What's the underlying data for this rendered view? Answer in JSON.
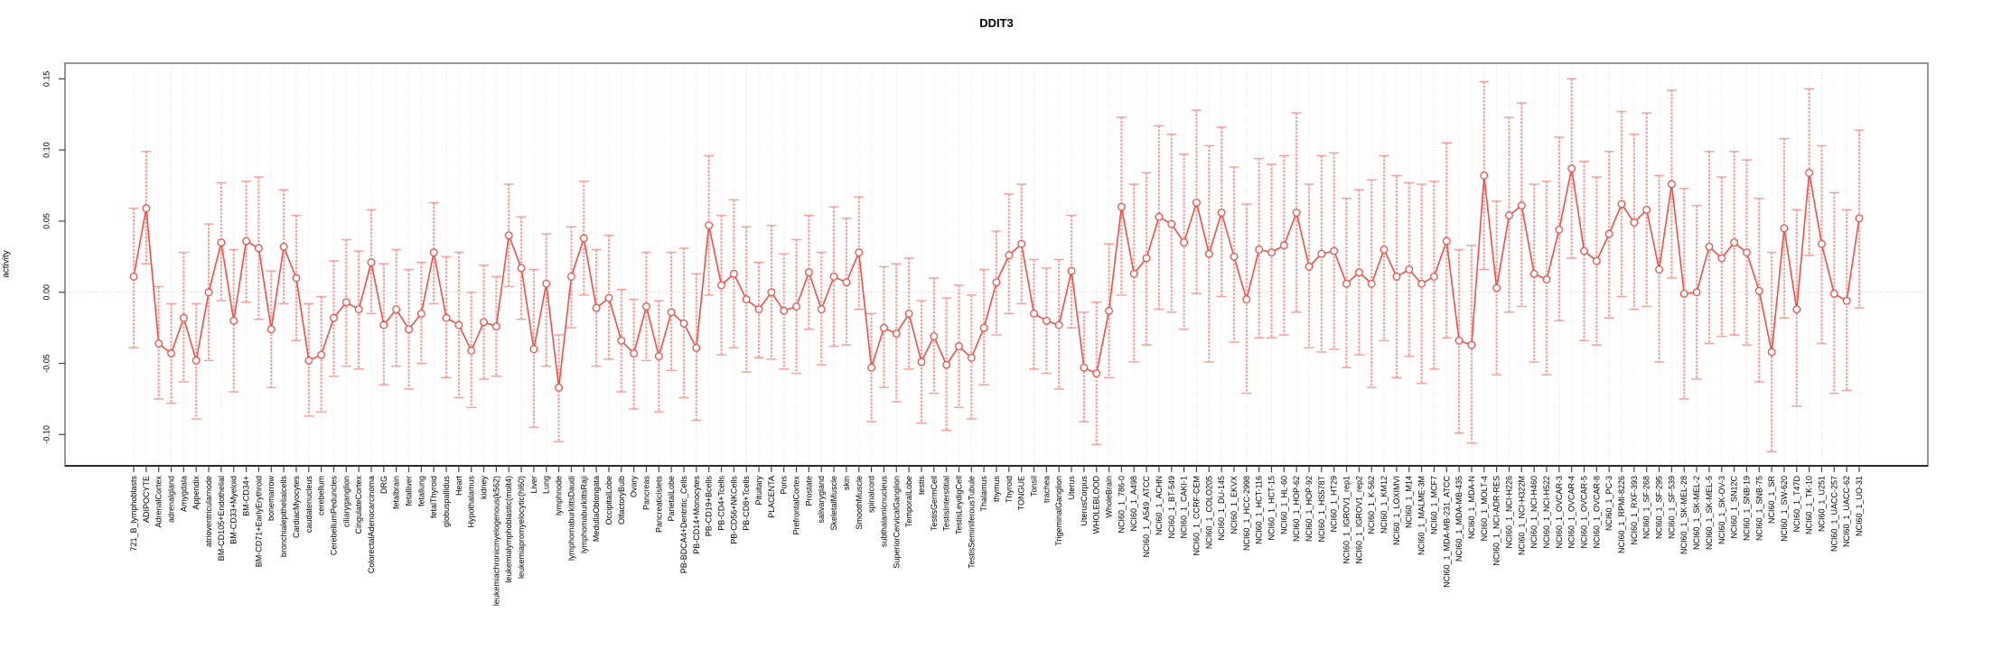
{
  "window": {
    "title": "DDIT3"
  },
  "chart_data": {
    "type": "line",
    "subtype": "points-with-error-bars",
    "title": "DDIT3",
    "xlabel": "",
    "ylabel": "activity",
    "ylim": [
      -0.122,
      0.161
    ],
    "yticks": [
      0.15,
      0.1,
      0.05,
      0.0,
      -0.05,
      -0.1
    ],
    "ytick_labels": [
      "0.15",
      "0.10",
      "0.05",
      "0.00",
      "-0.05",
      "-0.10"
    ],
    "grid": true,
    "zero_line": true,
    "legend": "none",
    "colors": {
      "line": "#ef4f48",
      "point": "#ef4f48",
      "error_bar": "#f5a09b",
      "grid": "#dedede",
      "zero_line": "#c8c8c8",
      "box": "#969696",
      "axis": "#2b2b2b",
      "text": "#000000"
    },
    "categories": [
      "721_B_lymphoblasts",
      "ADIPOCYTE",
      "AdrenalCortex",
      "adrenalgland",
      "Amygdala",
      "Appendix",
      "atrioventricularnode",
      "BM-CD105+Endothelial",
      "BM-CD33+Myeloid",
      "BM-CD34+",
      "BM-CD71+EarlyErythroid",
      "bonemarrow",
      "bronchialepithelialcells",
      "CardiacMyocytes",
      "caudatenucleus",
      "cerebellum",
      "CerebellumPeduncles",
      "ciliaryganglion",
      "CingulateCortex",
      "ColorectalAdenocarcinoma",
      "DRG",
      "fetalbrain",
      "fetalliver",
      "fetallung",
      "fetalThyroid",
      "globuspallidus",
      "Heart",
      "Hypothalamus",
      "kidney",
      "leukemiachronicmyelogenous(k562)",
      "leukemialymphoblastic(molt4)",
      "leukemiapromyelocytic(hl60)",
      "Liver",
      "Lung",
      "lymphnode",
      "lymphomaburkittsDaudi",
      "lymphomaburkittsRaji",
      "MedullaOblongata",
      "OccipitalLobe",
      "OlfactoryBulb",
      "Ovary",
      "Pancreas",
      "Pancreaticislets",
      "ParietalLobe",
      "PB-BDCA4+Dentritic_Cells",
      "PB-CD14+Monocytes",
      "PB-CD19+Bcells",
      "PB-CD4+Tcells",
      "PB-CD56+NKCells",
      "PB-CD8+Tcells",
      "Pituitary",
      "PLACENTA",
      "Pons",
      "PrefrontalCortex",
      "Prostate",
      "salivarygland",
      "SkeletalMuscle",
      "skin",
      "SmoothMuscle",
      "spinalcord",
      "subthalamicnucleus",
      "SuperiorCervicalGanglion",
      "TemporalLobe",
      "testis",
      "TestisGermCell",
      "TestisInterstitial",
      "TestisLeydigCell",
      "TestisSeminiferousTubule",
      "Thalamus",
      "thymus",
      "Thyroid",
      "TONGUE",
      "Tonsil",
      "trachea",
      "TrigeminalGanglion",
      "Uterus",
      "UterusCorpus",
      "WHOLEBLOOD",
      "WholeBrain",
      "NCI60_1_786-0",
      "NCI60_1_A498",
      "NCI60_1_A549_ATCC",
      "NCI60_1_ACHN",
      "NCI60_1_BT-549",
      "NCI60_1_CAKI-1",
      "NCI60_1_CCRF-CEM",
      "NCI60_1_COLO205",
      "NCI60_1_DU-145",
      "NCI60_1_EKVX",
      "NCI60_1_HCC-2998",
      "NCI60_1_HCT-116",
      "NCI60_1_HCT-15",
      "NCI60_1_HL-60",
      "NCI60_1_HOP-62",
      "NCI60_1_HOP-92",
      "NCI60_1_HS578T",
      "NCI60_1_HT29",
      "NCI60_1_IGROV1_rep1",
      "NCI60_1_IGROV1_rep2",
      "NCI60_1_K-562",
      "NCI60_1_KM12",
      "NCI60_1_LOXIMVI",
      "NCI60_1_M14",
      "NCI60_1_MALME-3M",
      "NCI60_1_MCF7",
      "NCI60_1_MDA-MB-231_ATCC",
      "NCI60_1_MDA-MB-435",
      "NCI60_1_MDA-N",
      "NCI60_1_MOLT-4",
      "NCI60_1_NCI-ADR-RES",
      "NCI60_1_NCI-H226",
      "NCI60_1_NCI-H322M",
      "NCI60_1_NCI-H460",
      "NCI60_1_NCI-H522",
      "NCI60_1_OVCAR-3",
      "NCI60_1_OVCAR-4",
      "NCI60_1_OVCAR-5",
      "NCI60_1_OVCAR-8",
      "NCI60_1_PC-3",
      "NCI60_1_RPMI-8226",
      "NCI60_1_RXF-393",
      "NCI60_1_SF-268",
      "NCI60_1_SF-295",
      "NCI60_1_SF-539",
      "NCI60_1_SK-MEL-28",
      "NCI60_1_SK-MEL-2",
      "NCI60_1_SK-MEL-5",
      "NCI60_1_SK-OV-3",
      "NCI60_1_SN12C",
      "NCI60_1_SNB-19",
      "NCI60_1_SNB-75",
      "NCI60_1_SR",
      "NCI60_1_SW-620",
      "NCI60_1_T47D",
      "NCI60_1_TK-10",
      "NCI60_1_U251",
      "NCI60_1_UACC-257",
      "NCI60_1_UACC-62",
      "NCI60_1_UO-31"
    ],
    "series": [
      {
        "name": "activity",
        "values": [
          0.011,
          0.059,
          -0.036,
          -0.043,
          -0.018,
          -0.048,
          0.0,
          0.035,
          -0.02,
          0.036,
          0.031,
          -0.026,
          0.032,
          0.01,
          -0.048,
          -0.044,
          -0.018,
          -0.007,
          -0.012,
          0.021,
          -0.023,
          -0.012,
          -0.026,
          -0.015,
          0.028,
          -0.018,
          -0.023,
          -0.041,
          -0.021,
          -0.024,
          0.04,
          0.017,
          -0.04,
          0.006,
          -0.067,
          0.011,
          0.038,
          -0.011,
          -0.004,
          -0.034,
          -0.043,
          -0.01,
          -0.045,
          -0.014,
          -0.022,
          -0.039,
          0.047,
          0.005,
          0.013,
          -0.005,
          -0.012,
          0.0,
          -0.013,
          -0.01,
          0.014,
          -0.012,
          0.011,
          0.007,
          0.028,
          -0.053,
          -0.025,
          -0.029,
          -0.015,
          -0.049,
          -0.031,
          -0.051,
          -0.038,
          -0.046,
          -0.025,
          0.007,
          0.026,
          0.034,
          -0.015,
          -0.02,
          -0.023,
          0.015,
          -0.053,
          -0.057,
          -0.013,
          0.06,
          0.013,
          0.024,
          0.053,
          0.048,
          0.035,
          0.063,
          0.027,
          0.056,
          0.025,
          -0.005,
          0.03,
          0.028,
          0.033,
          0.056,
          0.018,
          0.027,
          0.029,
          0.006,
          0.014,
          0.006,
          0.03,
          0.011,
          0.016,
          0.006,
          0.011,
          0.036,
          -0.034,
          -0.037,
          0.082,
          0.003,
          0.054,
          0.061,
          0.013,
          0.009,
          0.044,
          0.087,
          0.029,
          0.022,
          0.041,
          0.062,
          0.049,
          0.058,
          0.016,
          0.076,
          -0.001,
          0.0,
          0.032,
          0.024,
          0.035,
          0.028,
          0.001,
          -0.042,
          0.045,
          -0.012,
          0.084,
          0.034,
          -0.001,
          -0.006,
          0.052
        ],
        "ci_low": [
          -0.039,
          0.02,
          -0.075,
          -0.078,
          -0.063,
          -0.089,
          -0.048,
          -0.006,
          -0.07,
          -0.007,
          -0.019,
          -0.067,
          -0.008,
          -0.034,
          -0.087,
          -0.084,
          -0.059,
          -0.052,
          -0.054,
          -0.015,
          -0.065,
          -0.052,
          -0.068,
          -0.05,
          -0.008,
          -0.06,
          -0.074,
          -0.081,
          -0.061,
          -0.059,
          0.004,
          -0.019,
          -0.095,
          -0.052,
          -0.105,
          -0.025,
          -0.002,
          -0.052,
          -0.047,
          -0.07,
          -0.082,
          -0.048,
          -0.084,
          -0.055,
          -0.074,
          -0.09,
          -0.002,
          -0.044,
          -0.039,
          -0.056,
          -0.046,
          -0.047,
          -0.054,
          -0.057,
          -0.026,
          -0.051,
          -0.038,
          -0.037,
          -0.012,
          -0.091,
          -0.067,
          -0.077,
          -0.054,
          -0.092,
          -0.071,
          -0.097,
          -0.081,
          -0.089,
          -0.065,
          -0.03,
          -0.015,
          -0.008,
          -0.054,
          -0.057,
          -0.068,
          -0.025,
          -0.091,
          -0.107,
          -0.06,
          -0.002,
          -0.049,
          -0.037,
          -0.012,
          -0.014,
          -0.026,
          -0.001,
          -0.049,
          -0.003,
          -0.035,
          -0.071,
          -0.032,
          -0.032,
          -0.03,
          -0.014,
          -0.039,
          -0.042,
          -0.04,
          -0.053,
          -0.044,
          -0.067,
          -0.034,
          -0.06,
          -0.045,
          -0.064,
          -0.054,
          -0.032,
          -0.099,
          -0.106,
          0.016,
          -0.058,
          -0.014,
          -0.01,
          -0.049,
          -0.058,
          -0.02,
          0.024,
          -0.034,
          -0.037,
          -0.018,
          -0.003,
          -0.012,
          -0.01,
          -0.049,
          0.01,
          -0.075,
          -0.061,
          -0.036,
          -0.031,
          -0.03,
          -0.037,
          -0.063,
          -0.112,
          -0.018,
          -0.08,
          0.026,
          -0.036,
          -0.071,
          -0.069,
          -0.011
        ],
        "ci_high": [
          0.059,
          0.099,
          0.004,
          -0.008,
          0.028,
          -0.008,
          0.048,
          0.077,
          0.03,
          0.078,
          0.081,
          0.015,
          0.072,
          0.054,
          -0.008,
          -0.003,
          0.022,
          0.037,
          0.029,
          0.058,
          0.02,
          0.03,
          0.016,
          0.021,
          0.063,
          0.025,
          0.028,
          0.0,
          0.019,
          0.011,
          0.076,
          0.053,
          0.016,
          0.041,
          -0.03,
          0.046,
          0.078,
          0.03,
          0.04,
          0.002,
          -0.005,
          0.028,
          -0.006,
          0.028,
          0.031,
          0.013,
          0.096,
          0.054,
          0.065,
          0.046,
          0.021,
          0.047,
          0.027,
          0.037,
          0.054,
          0.028,
          0.06,
          0.052,
          0.067,
          -0.015,
          0.018,
          0.02,
          0.024,
          -0.006,
          0.01,
          -0.004,
          0.005,
          -0.002,
          0.016,
          0.043,
          0.069,
          0.076,
          0.023,
          0.017,
          0.023,
          0.054,
          -0.014,
          -0.007,
          0.034,
          0.123,
          0.076,
          0.084,
          0.117,
          0.111,
          0.097,
          0.128,
          0.103,
          0.116,
          0.088,
          0.062,
          0.094,
          0.09,
          0.096,
          0.126,
          0.076,
          0.096,
          0.098,
          0.066,
          0.072,
          0.079,
          0.096,
          0.082,
          0.077,
          0.076,
          0.078,
          0.105,
          0.03,
          0.033,
          0.148,
          0.064,
          0.123,
          0.133,
          0.076,
          0.078,
          0.109,
          0.15,
          0.092,
          0.081,
          0.099,
          0.127,
          0.111,
          0.126,
          0.082,
          0.142,
          0.073,
          0.061,
          0.099,
          0.081,
          0.099,
          0.093,
          0.066,
          0.028,
          0.108,
          0.058,
          0.143,
          0.103,
          0.07,
          0.058,
          0.114
        ]
      }
    ]
  }
}
